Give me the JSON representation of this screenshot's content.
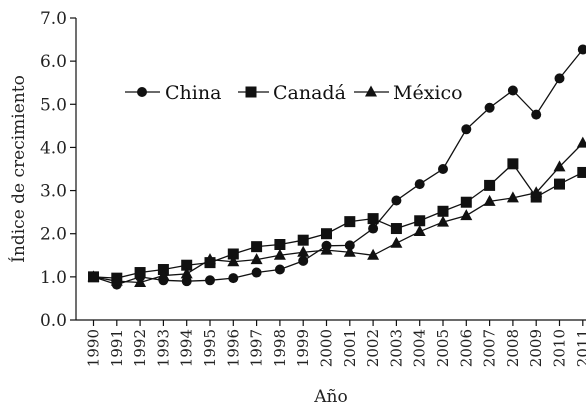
{
  "chart_data": {
    "type": "line",
    "title": "",
    "xlabel": "Año",
    "ylabel": "Índice de crecimiento",
    "ylim": [
      0,
      7
    ],
    "yticks": [
      "0.0",
      "1.0",
      "2.0",
      "3.0",
      "4.0",
      "5.0",
      "6.0",
      "7.0"
    ],
    "grid": false,
    "legend_position": "top-left",
    "x": [
      "1990",
      "1991",
      "1992",
      "1993",
      "1994",
      "1995",
      "1996",
      "1997",
      "1998",
      "1999",
      "2000",
      "2001",
      "2002",
      "2003",
      "2004",
      "2005",
      "2006",
      "2007",
      "2008",
      "2009",
      "2010",
      "2011"
    ],
    "series": [
      {
        "name": "China",
        "marker": "circle",
        "values": [
          1.0,
          0.82,
          1.0,
          0.92,
          0.9,
          0.92,
          0.97,
          1.1,
          1.17,
          1.37,
          1.72,
          1.73,
          2.12,
          2.77,
          3.15,
          3.5,
          4.42,
          4.92,
          5.32,
          4.76,
          5.6,
          6.27
        ]
      },
      {
        "name": "Canadá",
        "marker": "square",
        "values": [
          1.0,
          0.97,
          1.1,
          1.17,
          1.27,
          1.33,
          1.53,
          1.7,
          1.75,
          1.85,
          2.0,
          2.28,
          2.35,
          2.12,
          2.3,
          2.52,
          2.73,
          3.12,
          3.62,
          2.85,
          3.15,
          3.42
        ]
      },
      {
        "name": "México",
        "marker": "triangle",
        "values": [
          1.0,
          0.9,
          0.87,
          1.03,
          1.07,
          1.4,
          1.35,
          1.4,
          1.5,
          1.57,
          1.62,
          1.57,
          1.5,
          1.78,
          2.05,
          2.27,
          2.42,
          2.75,
          2.83,
          2.95,
          3.55,
          4.1
        ]
      }
    ]
  }
}
